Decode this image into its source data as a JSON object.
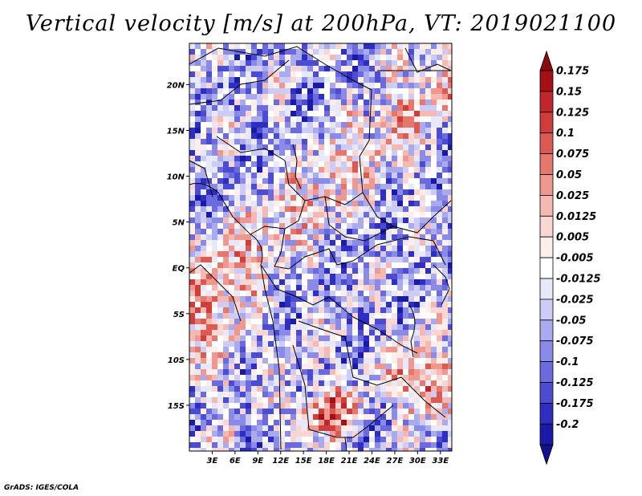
{
  "title": "Vertical velocity [m/s] at 200hPa, VT: 2019021100",
  "credit": "GrADS: IGES/COLA",
  "map": {
    "variable": "Vertical velocity",
    "units": "m/s",
    "level": "200hPa",
    "valid_time": "2019021100",
    "lon_range": [
      0,
      34.5
    ],
    "lat_range": [
      -20,
      24.5
    ],
    "lat_ticks": [
      {
        "value": 20,
        "label": "20N"
      },
      {
        "value": 15,
        "label": "15N"
      },
      {
        "value": 10,
        "label": "10N"
      },
      {
        "value": 5,
        "label": "5N"
      },
      {
        "value": 0,
        "label": "EQ"
      },
      {
        "value": -5,
        "label": "5S"
      },
      {
        "value": -10,
        "label": "10S"
      },
      {
        "value": -15,
        "label": "15S"
      }
    ],
    "lon_ticks": [
      {
        "value": 3,
        "label": "3E"
      },
      {
        "value": 6,
        "label": "6E"
      },
      {
        "value": 9,
        "label": "9E"
      },
      {
        "value": 12,
        "label": "12E"
      },
      {
        "value": 15,
        "label": "15E"
      },
      {
        "value": 18,
        "label": "18E"
      },
      {
        "value": 21,
        "label": "21E"
      },
      {
        "value": 24,
        "label": "24E"
      },
      {
        "value": 27,
        "label": "27E"
      },
      {
        "value": 30,
        "label": "30E"
      },
      {
        "value": 33,
        "label": "33E"
      }
    ]
  },
  "colorbar": {
    "levels": [
      {
        "label": "0.175",
        "color": "#a50f15"
      },
      {
        "label": "0.15",
        "color": "#c0262b"
      },
      {
        "label": "0.125",
        "color": "#d03d3a"
      },
      {
        "label": "0.1",
        "color": "#dc5a52"
      },
      {
        "label": "0.075",
        "color": "#e6776d"
      },
      {
        "label": "0.05",
        "color": "#ee9890"
      },
      {
        "label": "0.025",
        "color": "#f5b8b2"
      },
      {
        "label": "0.0125",
        "color": "#fad6d2"
      },
      {
        "label": "0.005",
        "color": "#fdeeec"
      },
      {
        "label": "-0.005",
        "color": "#ffffff"
      },
      {
        "label": "-0.0125",
        "color": "#e8e8fb"
      },
      {
        "label": "-0.025",
        "color": "#ccccf6"
      },
      {
        "label": "-0.05",
        "color": "#aaaaef"
      },
      {
        "label": "-0.075",
        "color": "#8a8ae8"
      },
      {
        "label": "-0.1",
        "color": "#6b6bdf"
      },
      {
        "label": "-0.125",
        "color": "#4c4cd3"
      },
      {
        "label": "-0.175",
        "color": "#2e2ec2"
      },
      {
        "label": "-0.2",
        "color": "#1a1aa8"
      }
    ],
    "top_cap_color": "#8b0a10",
    "bottom_cap_color": "#12128f"
  }
}
